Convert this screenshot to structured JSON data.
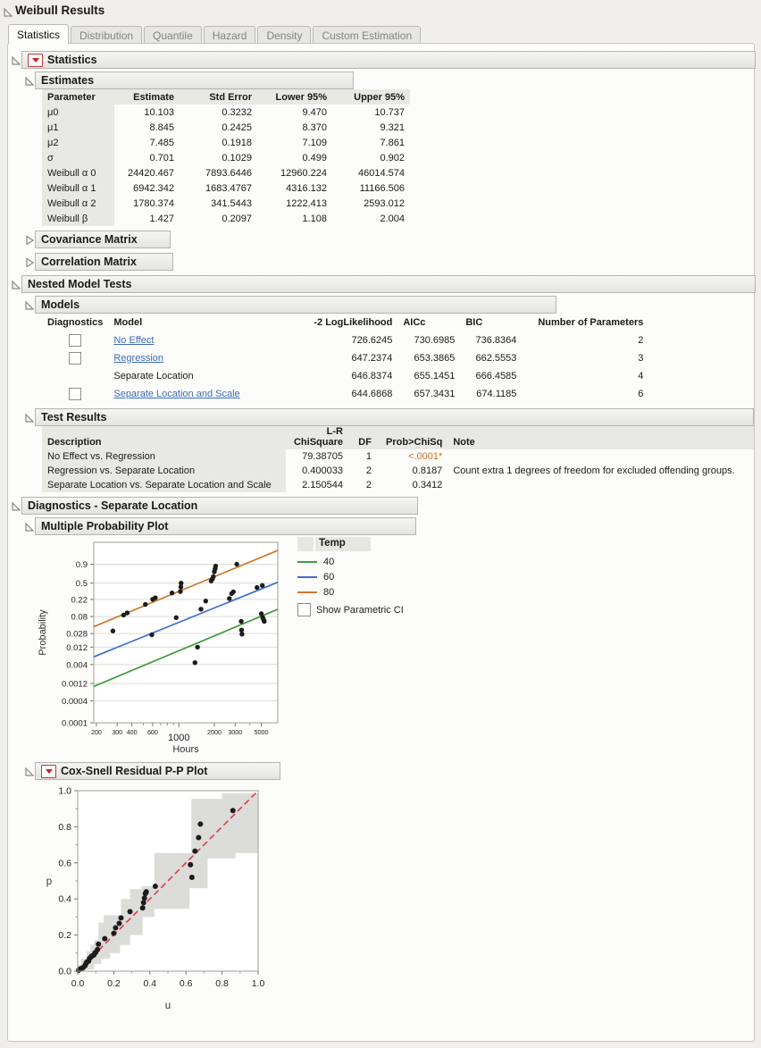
{
  "window": {
    "title": "Weibull Results"
  },
  "tabs": {
    "items": [
      "Statistics",
      "Distribution",
      "Quantile",
      "Hazard",
      "Density",
      "Custom Estimation"
    ],
    "active": "Statistics"
  },
  "statistics": {
    "title": "Statistics",
    "estimates": {
      "title": "Estimates",
      "columns": [
        "Parameter",
        "Estimate",
        "Std Error",
        "Lower 95%",
        "Upper 95%"
      ],
      "rows": [
        [
          "μ0",
          "10.103",
          "0.3232",
          "9.470",
          "10.737"
        ],
        [
          "μ1",
          "8.845",
          "0.2425",
          "8.370",
          "9.321"
        ],
        [
          "μ2",
          "7.485",
          "0.1918",
          "7.109",
          "7.861"
        ],
        [
          "σ",
          "0.701",
          "0.1029",
          "0.499",
          "0.902"
        ],
        [
          "Weibull α 0",
          "24420.467",
          "7893.6446",
          "12960.224",
          "46014.574"
        ],
        [
          "Weibull α 1",
          "6942.342",
          "1683.4767",
          "4316.132",
          "11166.506"
        ],
        [
          "Weibull α 2",
          "1780.374",
          "341.5443",
          "1222.413",
          "2593.012"
        ],
        [
          "Weibull β",
          "1.427",
          "0.2097",
          "1.108",
          "2.004"
        ]
      ]
    },
    "covariance_title": "Covariance Matrix",
    "correlation_title": "Correlation Matrix"
  },
  "nested_model_tests": {
    "title": "Nested Model Tests",
    "models": {
      "title": "Models",
      "columns": [
        "Diagnostics",
        "Model",
        "-2 LogLikelihood",
        "AICc",
        "BIC",
        "Number of Parameters"
      ],
      "rows": [
        {
          "checkbox": true,
          "model": "No Effect",
          "link": true,
          "loglik": "726.6245",
          "aicc": "730.6985",
          "bic": "736.8364",
          "nparm": "2"
        },
        {
          "checkbox": true,
          "model": "Regression",
          "link": true,
          "loglik": "647.2374",
          "aicc": "653.3865",
          "bic": "662.5553",
          "nparm": "3"
        },
        {
          "checkbox": false,
          "model": "Separate Location",
          "link": false,
          "loglik": "646.8374",
          "aicc": "655.1451",
          "bic": "666.4585",
          "nparm": "4"
        },
        {
          "checkbox": true,
          "model": "Separate Location and Scale",
          "link": true,
          "loglik": "644.6868",
          "aicc": "657.3431",
          "bic": "674.1185",
          "nparm": "6"
        }
      ]
    },
    "test_results": {
      "title": "Test Results",
      "columns": {
        "description": "Description",
        "chisq_line1": "L-R",
        "chisq_line2": "ChiSquare",
        "df": "DF",
        "prob": "Prob>ChiSq",
        "note": "Note"
      },
      "rows": [
        {
          "description": "No Effect vs. Regression",
          "chisq": "79.38705",
          "df": "1",
          "prob": "<.0001*",
          "prob_significant": true,
          "note": ""
        },
        {
          "description": "Regression vs. Separate Location",
          "chisq": "0.400033",
          "df": "2",
          "prob": "0.8187",
          "prob_significant": false,
          "note": "Count extra 1 degrees of freedom for excluded offending groups."
        },
        {
          "description": "Separate Location vs. Separate Location and Scale",
          "chisq": "2.150544",
          "df": "2",
          "prob": "0.3412",
          "prob_significant": false,
          "note": ""
        }
      ]
    }
  },
  "diagnostics": {
    "title": "Diagnostics - Separate Location",
    "probability_plot_title": "Multiple Probability Plot",
    "pp_plot_title": "Cox-Snell Residual P-P Plot",
    "legend": {
      "title": "Temp",
      "entries": [
        {
          "label": "40",
          "color": "#3f9c40"
        },
        {
          "label": "60",
          "color": "#3e6dcc"
        },
        {
          "label": "80",
          "color": "#cd7a28"
        }
      ],
      "checkbox_label": "Show Parametric CI",
      "checked": false
    }
  },
  "colors": {
    "significant": "#cf6f1f",
    "link": "#3b6db5",
    "reference_line": "#e23b4b",
    "band": "#dcdcd8",
    "point": "#1c1c1c",
    "grid": "#dcdcda",
    "frame": "#9c9c97"
  },
  "chart_data": [
    {
      "id": "probability-plot",
      "type": "scatter",
      "title": "Multiple Probability Plot",
      "xlabel": "Hours",
      "ylabel": "Probability",
      "x_scale": "log10",
      "y_scale": "weibull-probability",
      "xlim": [
        190,
        6900
      ],
      "ylim": [
        0.0001,
        0.9999
      ],
      "x_ticks_labeled": [
        200,
        300,
        400,
        600,
        2000,
        3000,
        5000
      ],
      "x_tick_major": 1000,
      "x_ticks_minor": [
        500,
        700,
        800,
        900,
        4000
      ],
      "y_ticks": [
        0.9,
        0.5,
        0.22,
        0.08,
        0.028,
        0.012,
        0.004,
        0.0012,
        0.0004,
        0.0001
      ],
      "grid": true,
      "legend_title": "Temp",
      "legend_position": "right",
      "series": [
        {
          "name": "40",
          "color": "#3f9c40",
          "line": [
            [
              190,
              0.001
            ],
            [
              6900,
              0.124
            ]
          ]
        },
        {
          "name": "60",
          "color": "#3e6dcc",
          "line": [
            [
              190,
              0.0065
            ],
            [
              6900,
              0.52
            ]
          ]
        },
        {
          "name": "80",
          "color": "#cd7a28",
          "line": [
            [
              190,
              0.043
            ],
            [
              6900,
              0.996
            ]
          ]
        }
      ],
      "points": [
        [
          276,
          0.033
        ],
        [
          340,
          0.088
        ],
        [
          365,
          0.1
        ],
        [
          520,
          0.165
        ],
        [
          590,
          0.026
        ],
        [
          600,
          0.22
        ],
        [
          632,
          0.24
        ],
        [
          875,
          0.31
        ],
        [
          950,
          0.075
        ],
        [
          1030,
          0.335
        ],
        [
          1040,
          0.42
        ],
        [
          1045,
          0.5
        ],
        [
          1370,
          0.0045
        ],
        [
          1440,
          0.012
        ],
        [
          1540,
          0.125
        ],
        [
          1690,
          0.2
        ],
        [
          1880,
          0.55
        ],
        [
          1930,
          0.6
        ],
        [
          1960,
          0.65
        ],
        [
          2000,
          0.76
        ],
        [
          2030,
          0.82
        ],
        [
          2050,
          0.87
        ],
        [
          2680,
          0.23
        ],
        [
          2800,
          0.3
        ],
        [
          2900,
          0.33
        ],
        [
          3100,
          0.9
        ],
        [
          3380,
          0.06
        ],
        [
          3400,
          0.035
        ],
        [
          3430,
          0.027
        ],
        [
          4600,
          0.41
        ],
        [
          5000,
          0.095
        ],
        [
          5100,
          0.45
        ],
        [
          5150,
          0.075
        ],
        [
          5230,
          0.066
        ],
        [
          5300,
          0.06
        ]
      ]
    },
    {
      "id": "pp-plot",
      "type": "scatter",
      "title": "Cox-Snell Residual P-P Plot",
      "xlabel": "u",
      "ylabel": "p",
      "xlim": [
        0,
        1
      ],
      "ylim": [
        0,
        1
      ],
      "x_ticks": [
        0,
        0.2,
        0.4,
        0.6,
        0.8,
        1.0
      ],
      "y_ticks": [
        0,
        0.2,
        0.4,
        0.6,
        0.8,
        1.0
      ],
      "grid": false,
      "reference_line": [
        [
          0,
          0
        ],
        [
          1,
          1
        ]
      ],
      "band_upper_steps": [
        [
          0.02,
          0.035
        ],
        [
          0.05,
          0.07
        ],
        [
          0.07,
          0.11
        ],
        [
          0.09,
          0.145
        ],
        [
          0.115,
          0.17
        ],
        [
          0.145,
          0.27
        ],
        [
          0.24,
          0.31
        ],
        [
          0.29,
          0.4
        ],
        [
          0.355,
          0.455
        ],
        [
          0.425,
          0.47
        ],
        [
          0.63,
          0.655
        ],
        [
          0.8,
          0.955
        ],
        [
          1.0,
          0.985
        ]
      ],
      "band_lower_steps": [
        [
          0.04,
          0.0
        ],
        [
          0.09,
          0.01
        ],
        [
          0.13,
          0.04
        ],
        [
          0.18,
          0.07
        ],
        [
          0.235,
          0.1
        ],
        [
          0.29,
          0.145
        ],
        [
          0.36,
          0.2
        ],
        [
          0.425,
          0.3
        ],
        [
          0.62,
          0.345
        ],
        [
          0.72,
          0.46
        ],
        [
          0.875,
          0.625
        ],
        [
          1.0,
          0.655
        ]
      ],
      "points": [
        [
          0.005,
          0.005
        ],
        [
          0.01,
          0.01
        ],
        [
          0.02,
          0.015
        ],
        [
          0.03,
          0.02
        ],
        [
          0.04,
          0.03
        ],
        [
          0.045,
          0.04
        ],
        [
          0.05,
          0.05
        ],
        [
          0.06,
          0.055
        ],
        [
          0.065,
          0.07
        ],
        [
          0.07,
          0.075
        ],
        [
          0.075,
          0.08
        ],
        [
          0.08,
          0.085
        ],
        [
          0.09,
          0.09
        ],
        [
          0.095,
          0.1
        ],
        [
          0.1,
          0.105
        ],
        [
          0.11,
          0.12
        ],
        [
          0.115,
          0.15
        ],
        [
          0.15,
          0.18
        ],
        [
          0.2,
          0.21
        ],
        [
          0.21,
          0.24
        ],
        [
          0.23,
          0.265
        ],
        [
          0.24,
          0.295
        ],
        [
          0.29,
          0.33
        ],
        [
          0.36,
          0.35
        ],
        [
          0.365,
          0.38
        ],
        [
          0.37,
          0.405
        ],
        [
          0.375,
          0.43
        ],
        [
          0.38,
          0.44
        ],
        [
          0.43,
          0.47
        ],
        [
          0.633,
          0.52
        ],
        [
          0.625,
          0.59
        ],
        [
          0.65,
          0.665
        ],
        [
          0.67,
          0.74
        ],
        [
          0.68,
          0.815
        ],
        [
          0.86,
          0.89
        ]
      ]
    }
  ]
}
